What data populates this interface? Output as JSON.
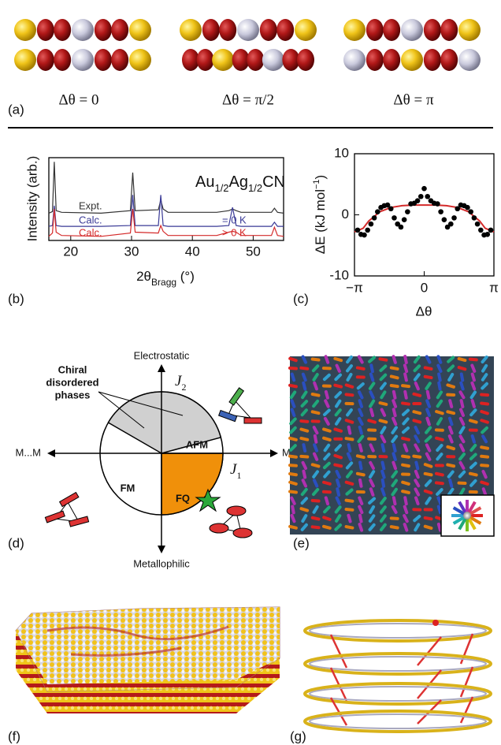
{
  "panel_labels": [
    "(a)",
    "(b)",
    "(c)",
    "(d)",
    "(e)",
    "(f)",
    "(g)"
  ],
  "panel_a": {
    "captions": [
      "Δθ = 0",
      "Δθ = π/2",
      "Δθ = π"
    ]
  },
  "chart_data": [
    {
      "type": "line",
      "annotation_parts": [
        "Au",
        "1/2",
        "Ag",
        "1/2",
        "CN"
      ],
      "x_label_parts": [
        "2θ",
        "Bragg",
        " (°)"
      ],
      "y_label": "Intensity (arb.)",
      "x": [
        16.4,
        17.0,
        17.3,
        17.6,
        18.5,
        25,
        29.8,
        30.2,
        30.6,
        34.4,
        34.8,
        35.2,
        36,
        44,
        46.0,
        46.6,
        47.2,
        48,
        53.0,
        53.5,
        54,
        55
      ],
      "xlim": [
        16.4,
        55
      ],
      "xticks": [
        20,
        30,
        40,
        50
      ],
      "ylim": [
        0,
        10
      ],
      "series": [
        {
          "name": "Expt.",
          "color": "#333333",
          "values": [
            3.3,
            3.5,
            9.5,
            3.6,
            3.4,
            3.3,
            3.6,
            8.2,
            3.6,
            3.7,
            4.9,
            3.8,
            3.4,
            3.4,
            3.6,
            3.8,
            3.6,
            3.4,
            3.4,
            3.9,
            3.4,
            3.3
          ]
        },
        {
          "name": "Calc.",
          "condition": "= 0 K",
          "color": "#3a3a96",
          "values": [
            1.7,
            1.8,
            4.2,
            1.8,
            1.7,
            1.7,
            1.8,
            5.5,
            1.8,
            1.8,
            5.5,
            1.8,
            1.7,
            1.7,
            1.8,
            4.0,
            1.8,
            1.7,
            1.7,
            2.2,
            1.7,
            1.7
          ]
        },
        {
          "name": "Calc.",
          "condition": "> 0 K",
          "color": "#d42a2a",
          "values": [
            0.5,
            0.9,
            3.8,
            1.0,
            0.6,
            0.5,
            0.9,
            3.8,
            1.0,
            0.9,
            1.8,
            1.1,
            0.6,
            0.6,
            1.0,
            1.1,
            1.0,
            0.6,
            0.6,
            1.6,
            0.6,
            0.5
          ]
        }
      ]
    },
    {
      "type": "scatter",
      "x_label": "Δθ",
      "y_label_parts": [
        "ΔE (kJ mol",
        "−1",
        ")"
      ],
      "xlim": [
        -3.14159,
        3.14159
      ],
      "xticks": [
        {
          "value": -3.14159,
          "label": "−π"
        },
        0,
        {
          "value": 3.14159,
          "label": "π"
        }
      ],
      "ylim": [
        -10,
        10
      ],
      "yticks": [
        -10,
        0,
        10
      ],
      "points": {
        "color": "#000000",
        "x": [
          -3.0,
          -2.85,
          -2.7,
          -2.55,
          -2.4,
          -2.25,
          -2.1,
          -1.95,
          -1.8,
          -1.65,
          -1.5,
          -1.35,
          -1.2,
          -1.05,
          -0.9,
          -0.75,
          -0.6,
          -0.45,
          -0.3,
          -0.15,
          0,
          0.15,
          0.3,
          0.45,
          0.6,
          0.75,
          0.9,
          1.05,
          1.2,
          1.35,
          1.5,
          1.65,
          1.8,
          1.95,
          2.1,
          2.25,
          2.4,
          2.55,
          2.7,
          2.85,
          3.0
        ],
        "values": [
          -2.5,
          -3.2,
          -3.3,
          -2.5,
          -1.5,
          -0.5,
          0.5,
          1.2,
          1.5,
          1.6,
          1.0,
          -0.5,
          -1.5,
          -2.0,
          -0.8,
          0.5,
          1.8,
          1.9,
          2.3,
          3.0,
          4.3,
          3.0,
          2.3,
          1.9,
          1.8,
          0.5,
          -0.8,
          -2.0,
          -1.5,
          -0.5,
          1.0,
          1.6,
          1.5,
          1.2,
          0.5,
          -0.5,
          -1.5,
          -2.5,
          -3.3,
          -3.2,
          -2.5
        ]
      },
      "fit": {
        "color": "#d42a2a",
        "x": [
          -3.14,
          -2.75,
          -2.5,
          -2.0,
          -1.5,
          -1.0,
          -0.5,
          0,
          0.5,
          1.0,
          1.5,
          2.0,
          2.5,
          2.75,
          3.14
        ],
        "values": [
          -2.8,
          -2.2,
          -1.0,
          0.5,
          1.2,
          1.5,
          1.6,
          1.6,
          1.6,
          1.5,
          1.2,
          0.5,
          -1.0,
          -2.2,
          -2.8
        ]
      }
    }
  ],
  "panel_d": {
    "axis_top": "Electrostatic",
    "j2": [
      "J",
      "2"
    ],
    "chiral": [
      "Chiral",
      "disordered",
      "phases"
    ],
    "left": "M...M",
    "fm": "FM",
    "afm": "AFM",
    "right": "M...M′",
    "j1": [
      "J",
      "1"
    ],
    "fq": "FQ",
    "axis_bottom": "Metallophilic"
  }
}
